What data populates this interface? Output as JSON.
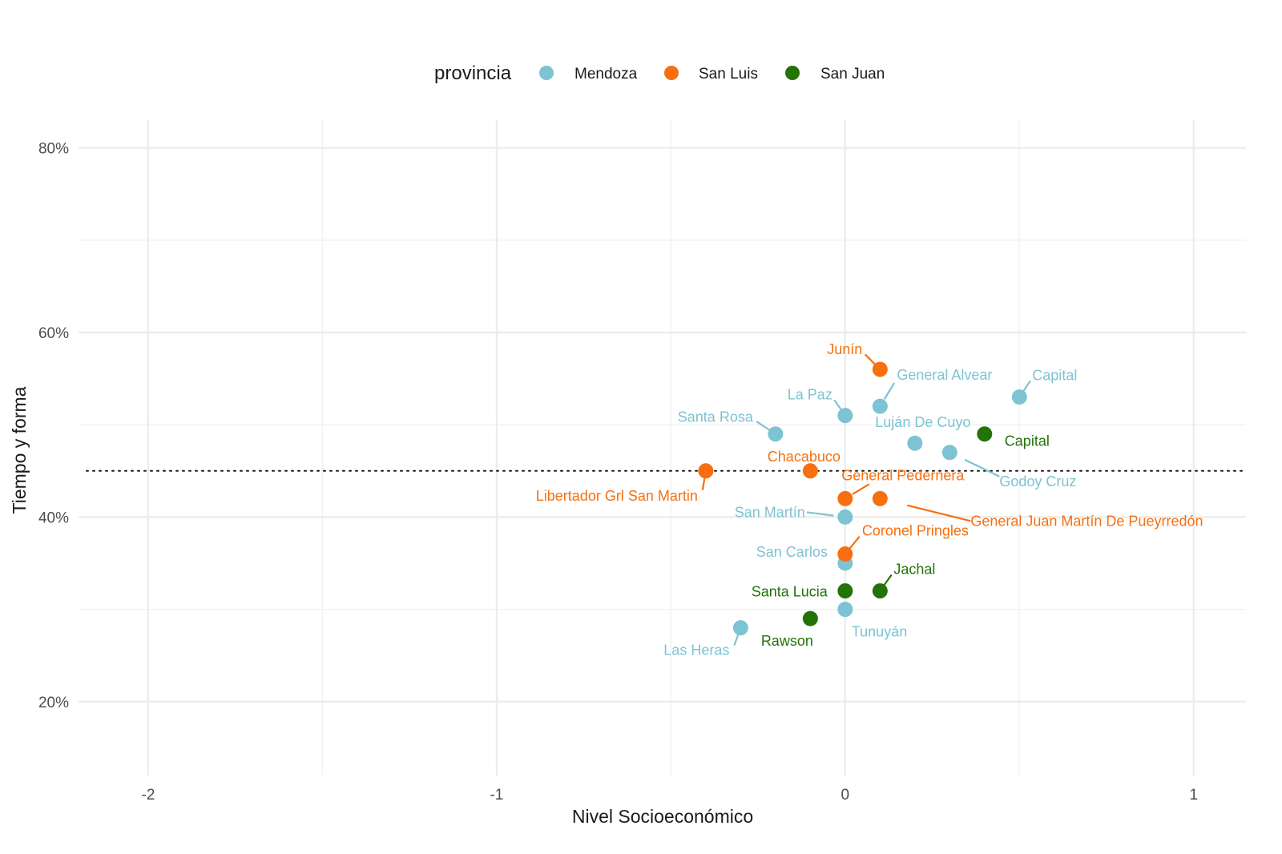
{
  "chart_data": {
    "type": "scatter",
    "xlabel": "Nivel Socioeconómico",
    "ylabel": "Tiempo y forma",
    "xlim": [
      -2.2,
      1.15
    ],
    "ylim": [
      0.12,
      0.83
    ],
    "x_ticks": [
      -2,
      -1,
      0,
      1
    ],
    "x_tick_labels": [
      "-2",
      "-1",
      "0",
      "1"
    ],
    "y_ticks": [
      0.2,
      0.4,
      0.6,
      0.8
    ],
    "y_tick_labels": [
      "20%",
      "40%",
      "60%",
      "80%"
    ],
    "reference_line_y": 0.45,
    "grid": true,
    "legend": {
      "title": "provincia",
      "position": "top",
      "entries": [
        {
          "name": "Mendoza",
          "color": "#7dc3d3"
        },
        {
          "name": "San Luis",
          "color": "#f86f0f"
        },
        {
          "name": "San Juan",
          "color": "#247307"
        }
      ]
    },
    "series": [
      {
        "name": "Mendoza",
        "color": "#7dc3d3",
        "points": [
          {
            "label": "Capital",
            "x": 0.5,
            "y": 0.53
          },
          {
            "label": "General Alvear",
            "x": 0.1,
            "y": 0.52
          },
          {
            "label": "La Paz",
            "x": 0.0,
            "y": 0.51
          },
          {
            "label": "Santa Rosa",
            "x": -0.2,
            "y": 0.49
          },
          {
            "label": "Luján De Cuyo",
            "x": 0.2,
            "y": 0.48
          },
          {
            "label": "Godoy Cruz",
            "x": 0.3,
            "y": 0.47
          },
          {
            "label": "San Martín",
            "x": 0.0,
            "y": 0.4
          },
          {
            "label": "San Carlos",
            "x": 0.0,
            "y": 0.35
          },
          {
            "label": "Tunuyán",
            "x": 0.0,
            "y": 0.3
          },
          {
            "label": "Las Heras",
            "x": -0.3,
            "y": 0.28
          }
        ]
      },
      {
        "name": "San Luis",
        "color": "#f86f0f",
        "points": [
          {
            "label": "Junín",
            "x": 0.1,
            "y": 0.56
          },
          {
            "label": "Chacabuco",
            "x": -0.1,
            "y": 0.45
          },
          {
            "label": "Libertador Grl San Martin",
            "x": -0.4,
            "y": 0.45
          },
          {
            "label": "General Pedernera",
            "x": 0.0,
            "y": 0.42
          },
          {
            "label": "General Juan Martín De Pueyrredón",
            "x": 0.1,
            "y": 0.42
          },
          {
            "label": "Coronel Pringles",
            "x": 0.0,
            "y": 0.36
          }
        ]
      },
      {
        "name": "San Juan",
        "color": "#247307",
        "points": [
          {
            "label": "Capital",
            "x": 0.4,
            "y": 0.49
          },
          {
            "label": "Jachal",
            "x": 0.1,
            "y": 0.32
          },
          {
            "label": "Santa Lucia",
            "x": 0.0,
            "y": 0.32
          },
          {
            "label": "Rawson",
            "x": -0.1,
            "y": 0.29
          }
        ]
      }
    ]
  }
}
